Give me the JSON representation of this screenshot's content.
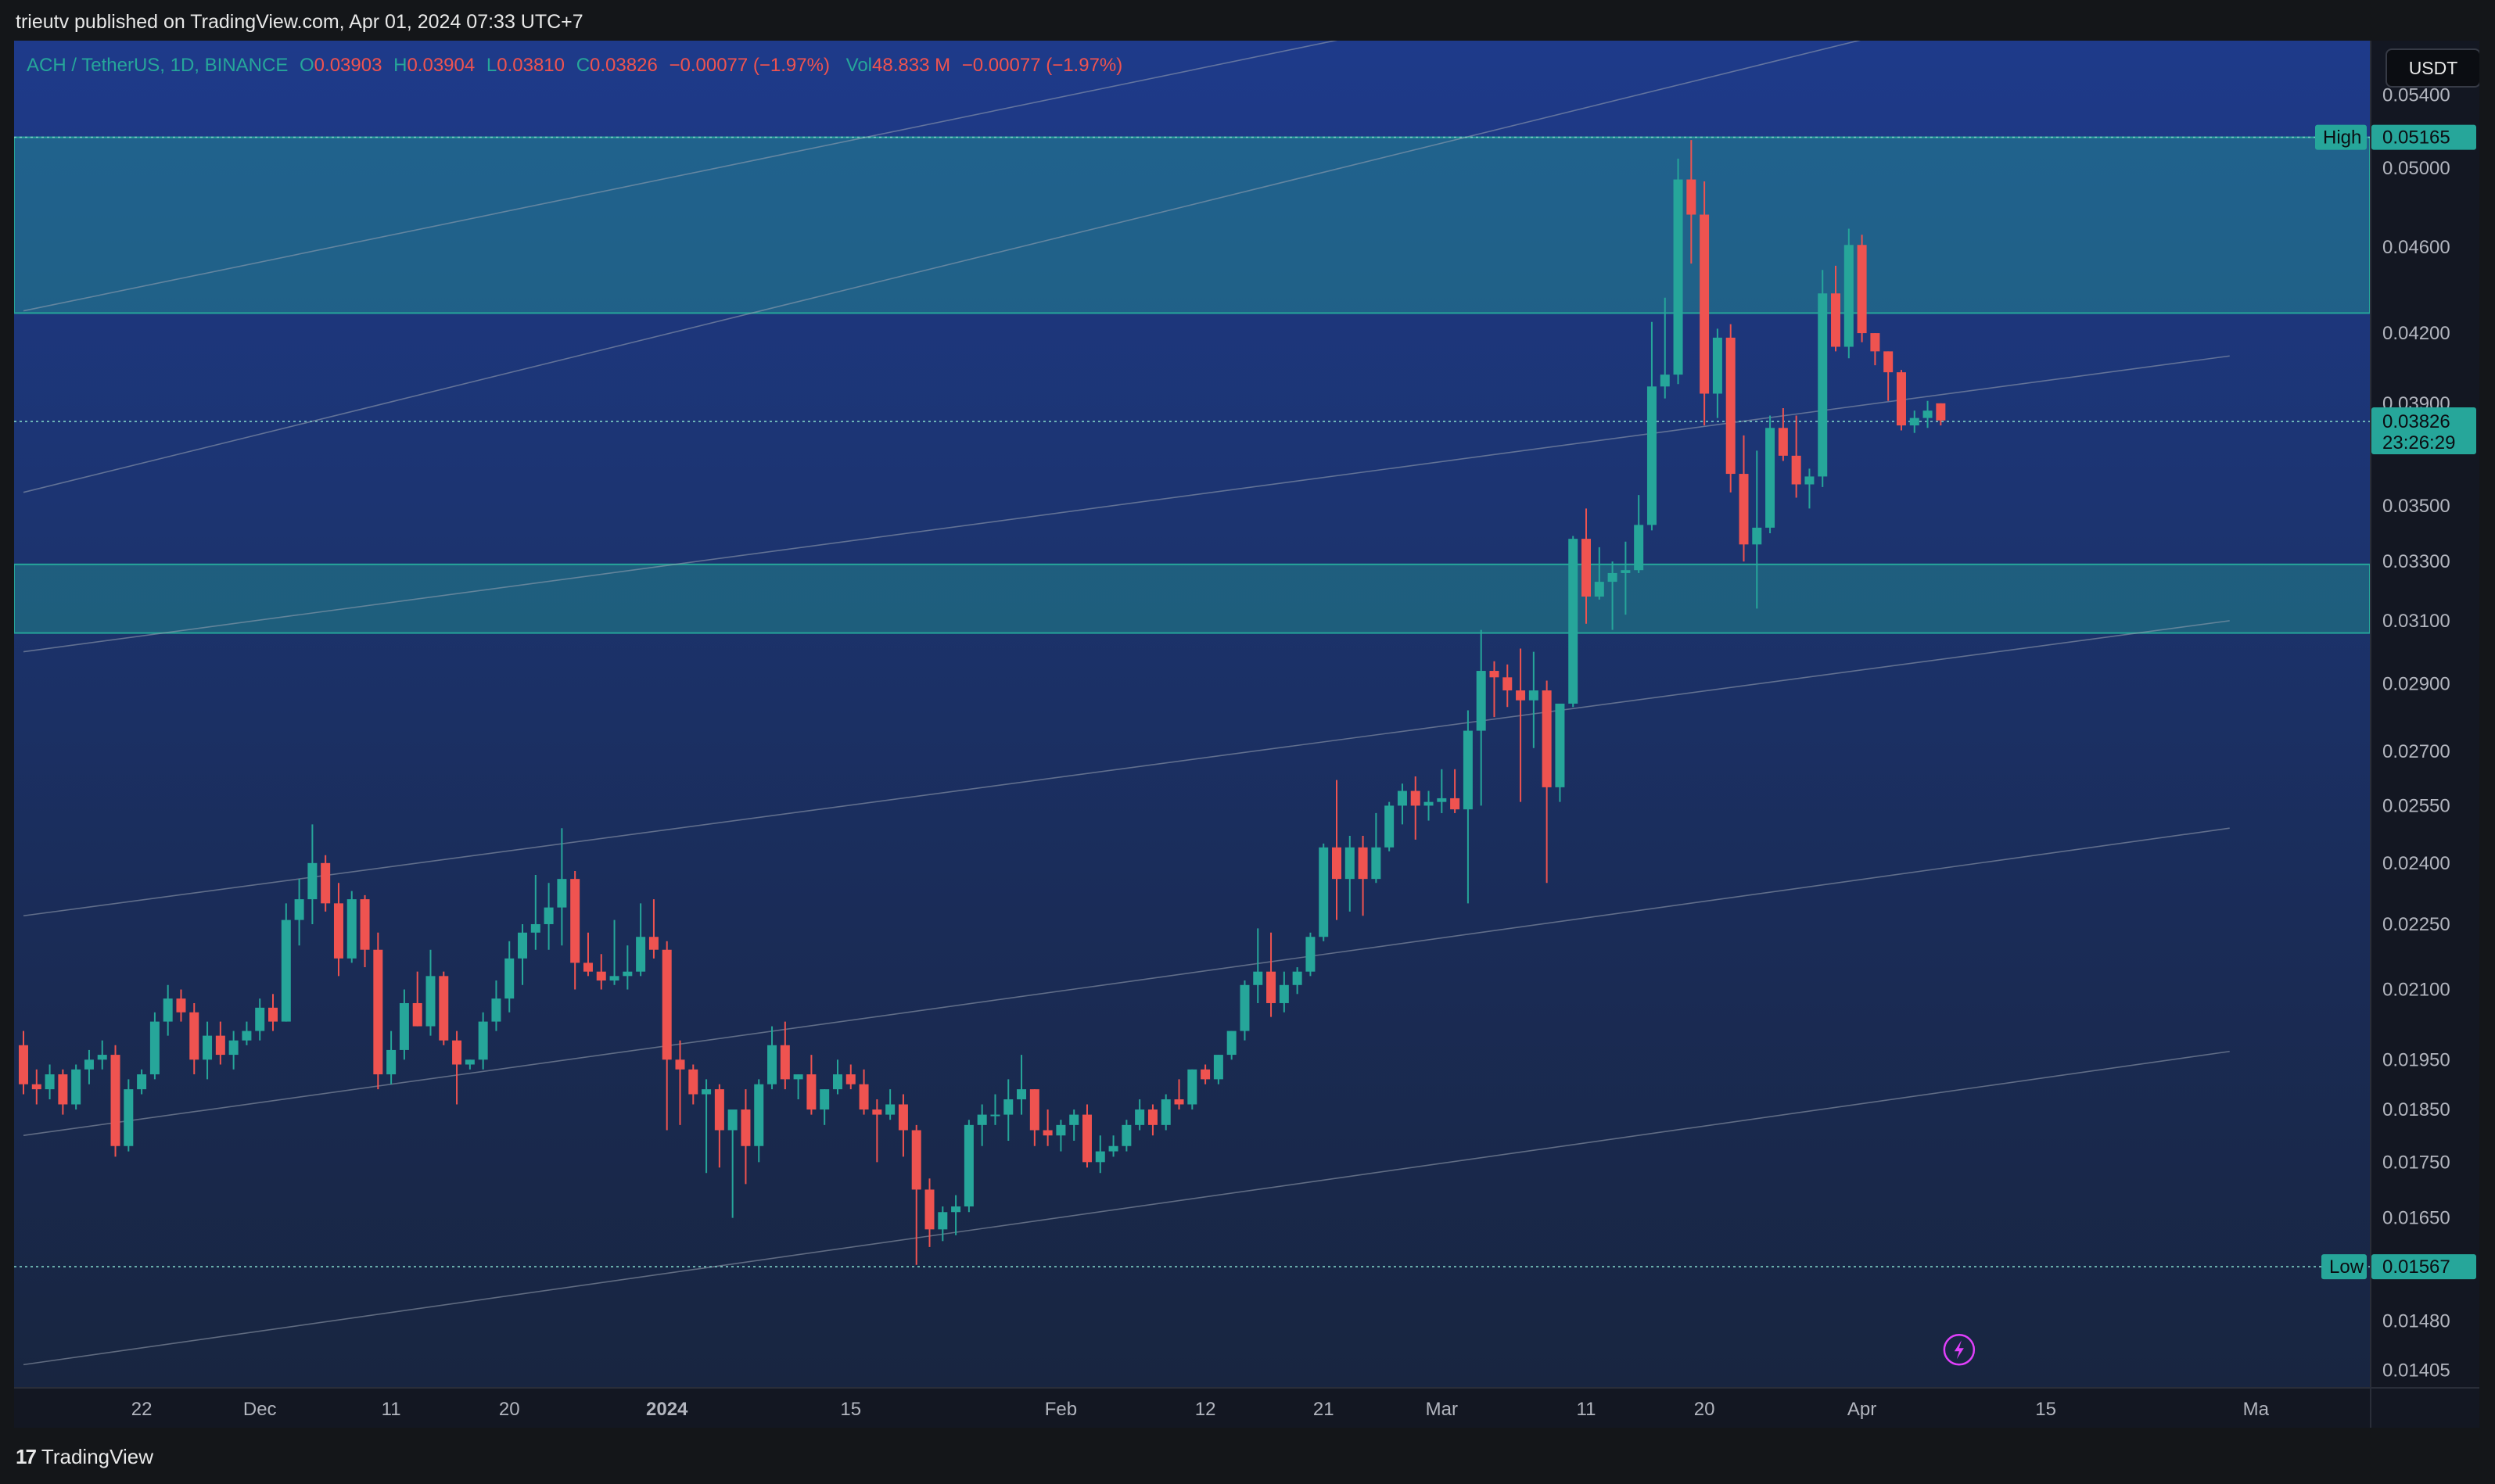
{
  "published_by": "trieutv published on TradingView.com, Apr 01, 2024 07:33 UTC+7",
  "legend": {
    "symbol": "ACH / TetherUS, 1D, BINANCE",
    "o_label": "O",
    "o": "0.03903",
    "h_label": "H",
    "h": "0.03904",
    "l_label": "L",
    "l": "0.03810",
    "c_label": "C",
    "c": "0.03826",
    "change": "−0.00077 (−1.97%)",
    "vol_label": "Vol",
    "vol": "48.833 M",
    "vol_change": "−0.00077 (−1.97%)"
  },
  "currency": "USDT",
  "footer": {
    "logo_mark": "17",
    "brand": "TradingView"
  },
  "colors": {
    "up": "#26a69a",
    "down": "#ef5350",
    "zone": "#26a69a",
    "channel": "#9aa4b2",
    "bg_top": "#1e3a8a",
    "bg_bottom": "#182540"
  },
  "markers": {
    "high": {
      "label": "High",
      "value": "0.05165"
    },
    "low": {
      "label": "Low",
      "value": "0.01567"
    },
    "last": {
      "value": "0.03826",
      "countdown": "23:26:29"
    }
  },
  "chart_data": {
    "type": "candlestick",
    "title": "ACH / TetherUS, 1D, BINANCE",
    "yscale": "log",
    "ylim": [
      0.0138,
      0.0572
    ],
    "grid": false,
    "price_ticks": [
      "0.05400",
      "0.05000",
      "0.04600",
      "0.04200",
      "0.03900",
      "0.03500",
      "0.03300",
      "0.03100",
      "0.02900",
      "0.02700",
      "0.02550",
      "0.02400",
      "0.02250",
      "0.02100",
      "0.01950",
      "0.01850",
      "0.01750",
      "0.01650",
      "0.01480",
      "0.01405"
    ],
    "time_ticks": [
      {
        "label": "22",
        "bold": false
      },
      {
        "label": "Dec",
        "bold": false
      },
      {
        "label": "11",
        "bold": false
      },
      {
        "label": "20",
        "bold": false
      },
      {
        "label": "2024",
        "bold": true
      },
      {
        "label": "15",
        "bold": false
      },
      {
        "label": "Feb",
        "bold": false
      },
      {
        "label": "12",
        "bold": false
      },
      {
        "label": "21",
        "bold": false
      },
      {
        "label": "Mar",
        "bold": false
      },
      {
        "label": "11",
        "bold": false
      },
      {
        "label": "20",
        "bold": false
      },
      {
        "label": "Apr",
        "bold": false
      },
      {
        "label": "15",
        "bold": false
      },
      {
        "label": "Ma",
        "bold": false
      }
    ],
    "time_tick_index": [
      9,
      18,
      28,
      37,
      49,
      63,
      79,
      90,
      99,
      108,
      119,
      128,
      140,
      154,
      170
    ],
    "zones": [
      {
        "from": 0.0429,
        "to": 0.05165
      },
      {
        "from": 0.0306,
        "to": 0.0329
      }
    ],
    "channel_lines": [
      {
        "start": [
          0,
          0.03
        ],
        "end": [
          168,
          0.041
        ]
      },
      {
        "start": [
          0,
          0.0227
        ],
        "end": [
          168,
          0.031
        ]
      },
      {
        "start": [
          0,
          0.018
        ],
        "end": [
          168,
          0.0249
        ]
      },
      {
        "start": [
          0,
          0.01413
        ],
        "end": [
          168,
          0.01967
        ]
      },
      {
        "start": [
          0,
          0.0355
        ],
        "end": [
          168,
          0.063
        ]
      },
      {
        "start": [
          0,
          0.043
        ],
        "end": [
          168,
          0.0695
        ]
      }
    ],
    "ohlc": [
      [
        0.0198,
        0.0201,
        0.0188,
        0.019
      ],
      [
        0.019,
        0.0193,
        0.0186,
        0.0189
      ],
      [
        0.0189,
        0.0194,
        0.0187,
        0.0192
      ],
      [
        0.0192,
        0.0193,
        0.0184,
        0.0186
      ],
      [
        0.0186,
        0.0194,
        0.0185,
        0.0193
      ],
      [
        0.0193,
        0.0197,
        0.019,
        0.0195
      ],
      [
        0.0195,
        0.0199,
        0.0193,
        0.0196
      ],
      [
        0.0196,
        0.0198,
        0.0176,
        0.0178
      ],
      [
        0.0178,
        0.0191,
        0.0177,
        0.0189
      ],
      [
        0.0189,
        0.0193,
        0.0188,
        0.0192
      ],
      [
        0.0192,
        0.0205,
        0.0191,
        0.0203
      ],
      [
        0.0203,
        0.0211,
        0.02,
        0.0208
      ],
      [
        0.0208,
        0.021,
        0.0203,
        0.0205
      ],
      [
        0.0205,
        0.0207,
        0.0192,
        0.0195
      ],
      [
        0.0195,
        0.0203,
        0.0191,
        0.02
      ],
      [
        0.02,
        0.0203,
        0.0194,
        0.0196
      ],
      [
        0.0196,
        0.0201,
        0.0193,
        0.0199
      ],
      [
        0.0199,
        0.0203,
        0.0198,
        0.0201
      ],
      [
        0.0201,
        0.0208,
        0.0199,
        0.0206
      ],
      [
        0.0206,
        0.0209,
        0.0201,
        0.0203
      ],
      [
        0.0203,
        0.023,
        0.0203,
        0.0226
      ],
      [
        0.0226,
        0.0236,
        0.022,
        0.0231
      ],
      [
        0.0231,
        0.025,
        0.0225,
        0.024
      ],
      [
        0.024,
        0.0242,
        0.0228,
        0.023
      ],
      [
        0.023,
        0.0235,
        0.0213,
        0.0217
      ],
      [
        0.0217,
        0.0233,
        0.0216,
        0.0231
      ],
      [
        0.0231,
        0.0232,
        0.0215,
        0.0219
      ],
      [
        0.0219,
        0.0223,
        0.0189,
        0.0192
      ],
      [
        0.0192,
        0.0201,
        0.019,
        0.0197
      ],
      [
        0.0197,
        0.021,
        0.0195,
        0.0207
      ],
      [
        0.0207,
        0.0214,
        0.0202,
        0.0202
      ],
      [
        0.0202,
        0.0219,
        0.02,
        0.0213
      ],
      [
        0.0213,
        0.0214,
        0.0198,
        0.0199
      ],
      [
        0.0199,
        0.0201,
        0.0186,
        0.0194
      ],
      [
        0.0194,
        0.0195,
        0.0193,
        0.0195
      ],
      [
        0.0195,
        0.0205,
        0.0193,
        0.0203
      ],
      [
        0.0203,
        0.0212,
        0.0201,
        0.0208
      ],
      [
        0.0208,
        0.0221,
        0.0205,
        0.0217
      ],
      [
        0.0217,
        0.0225,
        0.0211,
        0.0223
      ],
      [
        0.0223,
        0.0237,
        0.0219,
        0.0225
      ],
      [
        0.0225,
        0.0235,
        0.0219,
        0.0229
      ],
      [
        0.0229,
        0.0249,
        0.022,
        0.0236
      ],
      [
        0.0236,
        0.0238,
        0.021,
        0.0216
      ],
      [
        0.0216,
        0.0223,
        0.0213,
        0.0214
      ],
      [
        0.0214,
        0.0218,
        0.021,
        0.0212
      ],
      [
        0.0212,
        0.0226,
        0.0211,
        0.0213
      ],
      [
        0.0213,
        0.022,
        0.021,
        0.0214
      ],
      [
        0.0214,
        0.023,
        0.0213,
        0.0222
      ],
      [
        0.0222,
        0.0231,
        0.0217,
        0.0219
      ],
      [
        0.0219,
        0.0221,
        0.0181,
        0.0195
      ],
      [
        0.0195,
        0.0199,
        0.0182,
        0.0193
      ],
      [
        0.0193,
        0.0194,
        0.0186,
        0.0188
      ],
      [
        0.0188,
        0.0191,
        0.0173,
        0.0189
      ],
      [
        0.0189,
        0.019,
        0.0174,
        0.0181
      ],
      [
        0.0181,
        0.0183,
        0.0165,
        0.0185
      ],
      [
        0.0185,
        0.0189,
        0.0171,
        0.0178
      ],
      [
        0.0178,
        0.0191,
        0.0175,
        0.019
      ],
      [
        0.019,
        0.0202,
        0.0189,
        0.0198
      ],
      [
        0.0198,
        0.0203,
        0.0189,
        0.0191
      ],
      [
        0.0191,
        0.0192,
        0.0187,
        0.0192
      ],
      [
        0.0192,
        0.0196,
        0.0184,
        0.0185
      ],
      [
        0.0185,
        0.0189,
        0.0182,
        0.0189
      ],
      [
        0.0189,
        0.0195,
        0.0188,
        0.0192
      ],
      [
        0.0192,
        0.0194,
        0.0189,
        0.019
      ],
      [
        0.019,
        0.0193,
        0.0184,
        0.0185
      ],
      [
        0.0185,
        0.0187,
        0.0175,
        0.0184
      ],
      [
        0.0184,
        0.0189,
        0.0183,
        0.0186
      ],
      [
        0.0186,
        0.0188,
        0.0176,
        0.0181
      ],
      [
        0.0181,
        0.0182,
        0.0157,
        0.017
      ],
      [
        0.017,
        0.0172,
        0.016,
        0.0163
      ],
      [
        0.0163,
        0.0167,
        0.0161,
        0.0166
      ],
      [
        0.0166,
        0.0169,
        0.0162,
        0.0167
      ],
      [
        0.0167,
        0.0183,
        0.0166,
        0.0182
      ],
      [
        0.0182,
        0.0186,
        0.0178,
        0.0184
      ],
      [
        0.0184,
        0.0188,
        0.0182,
        0.0184
      ],
      [
        0.0184,
        0.0191,
        0.0179,
        0.0187
      ],
      [
        0.0187,
        0.0196,
        0.0184,
        0.0189
      ],
      [
        0.0189,
        0.0189,
        0.0178,
        0.0181
      ],
      [
        0.0181,
        0.0185,
        0.0178,
        0.018
      ],
      [
        0.018,
        0.0183,
        0.0177,
        0.0182
      ],
      [
        0.0182,
        0.0185,
        0.0179,
        0.0184
      ],
      [
        0.0184,
        0.0186,
        0.0174,
        0.0175
      ],
      [
        0.0175,
        0.018,
        0.0173,
        0.0177
      ],
      [
        0.0177,
        0.018,
        0.0176,
        0.0178
      ],
      [
        0.0178,
        0.0183,
        0.0177,
        0.0182
      ],
      [
        0.0182,
        0.0187,
        0.0181,
        0.0185
      ],
      [
        0.0185,
        0.0186,
        0.018,
        0.0182
      ],
      [
        0.0182,
        0.0188,
        0.0181,
        0.0187
      ],
      [
        0.0187,
        0.0191,
        0.0185,
        0.0186
      ],
      [
        0.0186,
        0.0193,
        0.0185,
        0.0193
      ],
      [
        0.0193,
        0.0194,
        0.019,
        0.0191
      ],
      [
        0.0191,
        0.0196,
        0.019,
        0.0196
      ],
      [
        0.0196,
        0.0201,
        0.0195,
        0.0201
      ],
      [
        0.0201,
        0.0212,
        0.0199,
        0.0211
      ],
      [
        0.0211,
        0.0224,
        0.0207,
        0.0214
      ],
      [
        0.0214,
        0.0223,
        0.0204,
        0.0207
      ],
      [
        0.0207,
        0.0214,
        0.0205,
        0.0211
      ],
      [
        0.0211,
        0.0215,
        0.0209,
        0.0214
      ],
      [
        0.0214,
        0.0223,
        0.0213,
        0.0222
      ],
      [
        0.0222,
        0.0245,
        0.0221,
        0.0244
      ],
      [
        0.0244,
        0.0262,
        0.0226,
        0.0236
      ],
      [
        0.0236,
        0.0247,
        0.0228,
        0.0244
      ],
      [
        0.0244,
        0.0247,
        0.0227,
        0.0236
      ],
      [
        0.0236,
        0.0253,
        0.0235,
        0.0244
      ],
      [
        0.0244,
        0.0256,
        0.0243,
        0.0255
      ],
      [
        0.0255,
        0.0261,
        0.025,
        0.0259
      ],
      [
        0.0259,
        0.0263,
        0.0246,
        0.0255
      ],
      [
        0.0255,
        0.0259,
        0.0251,
        0.0256
      ],
      [
        0.0256,
        0.0265,
        0.0253,
        0.0257
      ],
      [
        0.0257,
        0.0265,
        0.0253,
        0.0254
      ],
      [
        0.0254,
        0.0282,
        0.023,
        0.0276
      ],
      [
        0.0276,
        0.0307,
        0.0255,
        0.0294
      ],
      [
        0.0294,
        0.0297,
        0.028,
        0.0292
      ],
      [
        0.0292,
        0.0296,
        0.0283,
        0.0288
      ],
      [
        0.0288,
        0.0301,
        0.0256,
        0.0285
      ],
      [
        0.0285,
        0.03,
        0.0271,
        0.0288
      ],
      [
        0.0288,
        0.0291,
        0.0235,
        0.026
      ],
      [
        0.026,
        0.0281,
        0.0256,
        0.0284
      ],
      [
        0.0284,
        0.0339,
        0.0283,
        0.0338
      ],
      [
        0.0338,
        0.0349,
        0.0309,
        0.0318
      ],
      [
        0.0318,
        0.0335,
        0.0317,
        0.0323
      ],
      [
        0.0323,
        0.033,
        0.0307,
        0.0326
      ],
      [
        0.0326,
        0.0337,
        0.0312,
        0.0327
      ],
      [
        0.0327,
        0.0354,
        0.0326,
        0.0343
      ],
      [
        0.0343,
        0.0425,
        0.0341,
        0.0397
      ],
      [
        0.0397,
        0.0436,
        0.0392,
        0.0402
      ],
      [
        0.0402,
        0.0505,
        0.0398,
        0.0494
      ],
      [
        0.0494,
        0.0515,
        0.0452,
        0.0476
      ],
      [
        0.0476,
        0.0493,
        0.0381,
        0.0394
      ],
      [
        0.0394,
        0.0422,
        0.0384,
        0.0418
      ],
      [
        0.0418,
        0.0424,
        0.0355,
        0.0362
      ],
      [
        0.0362,
        0.0377,
        0.033,
        0.0336
      ],
      [
        0.0336,
        0.0371,
        0.0314,
        0.0342
      ],
      [
        0.0342,
        0.0385,
        0.034,
        0.038
      ],
      [
        0.038,
        0.0388,
        0.0367,
        0.0369
      ],
      [
        0.0369,
        0.0385,
        0.0353,
        0.0358
      ],
      [
        0.0358,
        0.0364,
        0.0349,
        0.0361
      ],
      [
        0.0361,
        0.0449,
        0.0357,
        0.0438
      ],
      [
        0.0438,
        0.0451,
        0.0412,
        0.0414
      ],
      [
        0.0414,
        0.0469,
        0.0409,
        0.0461
      ],
      [
        0.0461,
        0.0466,
        0.0416,
        0.042
      ],
      [
        0.042,
        0.042,
        0.0406,
        0.0412
      ],
      [
        0.0412,
        0.0412,
        0.0391,
        0.0403
      ],
      [
        0.0403,
        0.0404,
        0.0379,
        0.0381
      ],
      [
        0.0381,
        0.0387,
        0.0378,
        0.0384
      ],
      [
        0.0384,
        0.0391,
        0.038,
        0.0387
      ],
      [
        0.039,
        0.039,
        0.0381,
        0.0383
      ]
    ]
  }
}
